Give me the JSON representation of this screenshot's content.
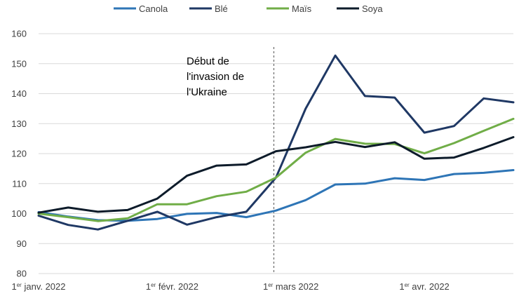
{
  "chart_data": {
    "type": "line",
    "title": "",
    "xlabel": "",
    "ylabel": "",
    "ylim": [
      80,
      160
    ],
    "yticks": [
      80,
      90,
      100,
      110,
      120,
      130,
      140,
      150,
      160
    ],
    "grid": "horizontal",
    "legend_position": "top",
    "x_count": 16,
    "x_ticks": [
      {
        "index": 0,
        "sup_prefix": "1",
        "sup": "er",
        "text": " janv. 2022"
      },
      {
        "index": 4.5,
        "sup_prefix": "1",
        "sup": "er",
        "text": " févr. 2022"
      },
      {
        "index": 8.5,
        "sup_prefix": "1",
        "sup": "er",
        "text": " mars 2022"
      },
      {
        "index": 13,
        "sup_prefix": "1",
        "sup": "er",
        "text": " avr. 2022"
      }
    ],
    "annotation": {
      "lines": [
        "Début de",
        "l'invasion de",
        "l'Ukraine"
      ],
      "x_index": 8
    },
    "series": [
      {
        "name": "Canola",
        "color": "#2E75B6",
        "values": [
          100.5,
          99,
          97.8,
          97.6,
          98.2,
          99.9,
          100.2,
          98.8,
          101,
          104.5,
          109.7,
          110,
          111.8,
          111.2,
          113.2,
          113.6,
          114.5
        ]
      },
      {
        "name": "Blé",
        "color": "#1F3864",
        "values": [
          99.3,
          96.2,
          94.7,
          97.6,
          100.6,
          96.3,
          98.8,
          100.6,
          112,
          135,
          152.7,
          139.2,
          138.7,
          127,
          129.2,
          138.4,
          137.1
        ]
      },
      {
        "name": "Maïs",
        "color": "#70AD47",
        "values": [
          100,
          98.8,
          97.5,
          98.4,
          103.1,
          103.1,
          105.8,
          107.3,
          112,
          120.3,
          124.9,
          123.3,
          123.2,
          120.1,
          123.5,
          127.6,
          131.6
        ]
      },
      {
        "name": "Soya",
        "color": "#0D1B2A",
        "values": [
          100.3,
          102,
          100.6,
          101.2,
          105,
          112.6,
          116,
          116.4,
          120.8,
          122.1,
          123.9,
          122.2,
          123.8,
          118.3,
          118.7,
          121.9,
          125.5
        ]
      }
    ]
  }
}
